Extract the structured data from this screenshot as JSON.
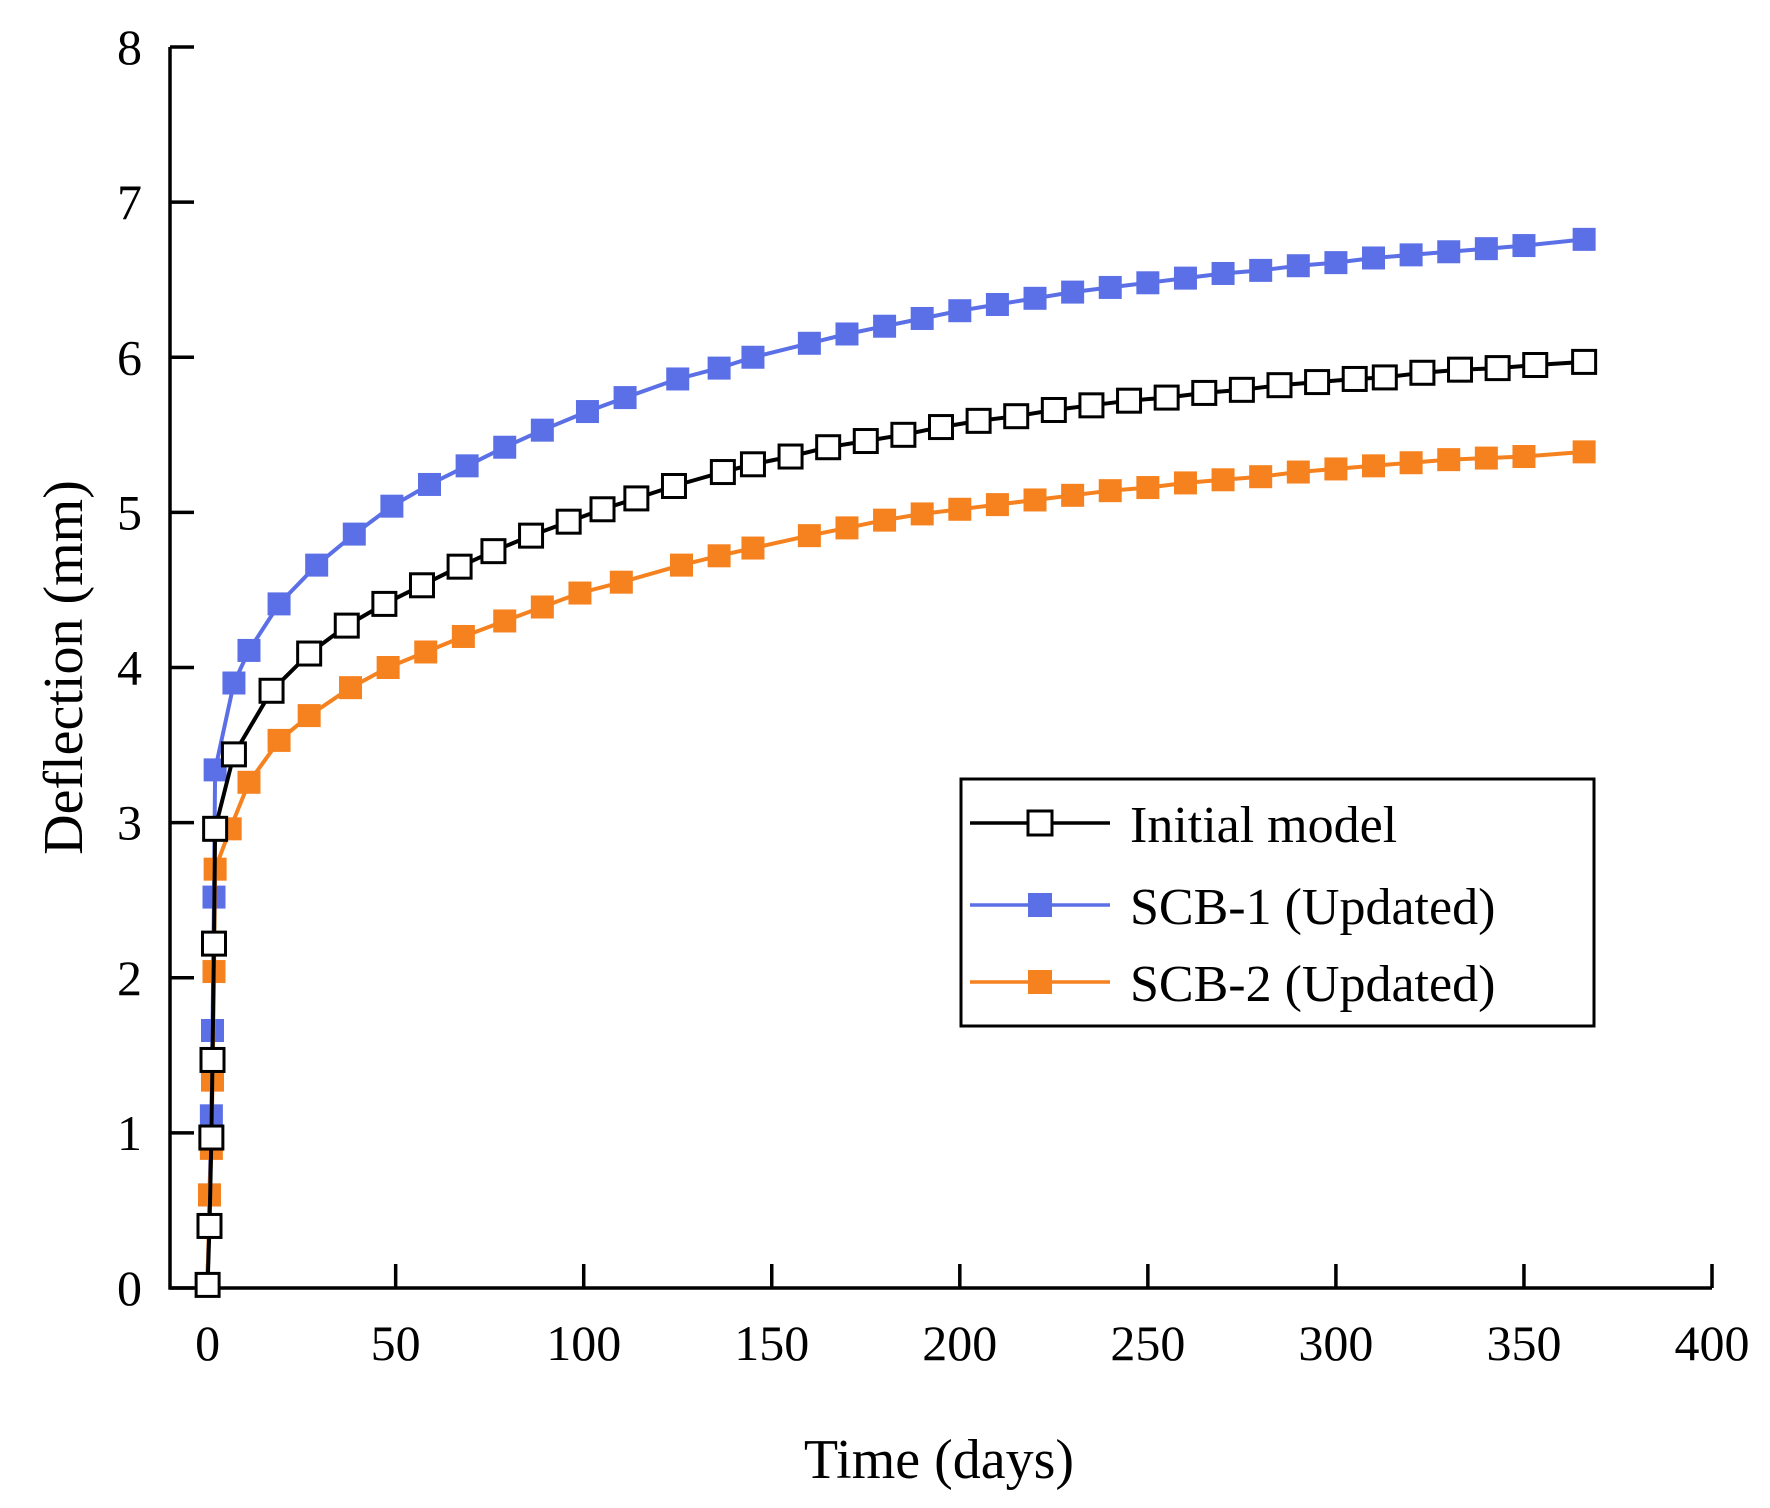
{
  "chart_data": {
    "type": "line",
    "title": "",
    "xlabel": "Time (days)",
    "ylabel": "Deflection (mm)",
    "xlim": [
      -10,
      400
    ],
    "ylim": [
      0,
      8
    ],
    "xticks": [
      "0",
      "50",
      "100",
      "150",
      "200",
      "250",
      "300",
      "350",
      "400"
    ],
    "yticks": [
      "0",
      "1",
      "2",
      "3",
      "4",
      "5",
      "6",
      "7",
      "8"
    ],
    "legend_position": "center-right",
    "series": [
      {
        "name": "Initial model",
        "color": "#000000",
        "marker": "square-open",
        "x": [
          0,
          0.5,
          1,
          1.3,
          1.7,
          2,
          7,
          17,
          27,
          37,
          47,
          57,
          67,
          76,
          86,
          96,
          105,
          114,
          124,
          137,
          145,
          155,
          165,
          175,
          185,
          195,
          205,
          215,
          225,
          235,
          245,
          255,
          265,
          275,
          285,
          295,
          305,
          313,
          323,
          333,
          343,
          353,
          366
        ],
        "y": [
          0.02,
          0.4,
          0.97,
          1.47,
          2.22,
          2.96,
          3.44,
          3.85,
          4.09,
          4.27,
          4.41,
          4.53,
          4.65,
          4.75,
          4.85,
          4.94,
          5.02,
          5.09,
          5.17,
          5.26,
          5.31,
          5.36,
          5.42,
          5.46,
          5.5,
          5.55,
          5.59,
          5.62,
          5.66,
          5.69,
          5.72,
          5.74,
          5.77,
          5.79,
          5.82,
          5.84,
          5.86,
          5.87,
          5.9,
          5.92,
          5.93,
          5.95,
          5.97
        ]
      },
      {
        "name": "SCB-1 (Updated)",
        "color": "#5B70E6",
        "marker": "square-filled",
        "x": [
          0,
          0.5,
          1,
          1.3,
          1.7,
          2,
          7,
          11,
          19,
          29,
          39,
          49,
          59,
          69,
          79,
          89,
          101,
          111,
          125,
          136,
          145,
          160,
          170,
          180,
          190,
          200,
          210,
          220,
          230,
          240,
          250,
          260,
          270,
          280,
          290,
          300,
          310,
          320,
          330,
          340,
          350,
          366
        ],
        "y": [
          0.02,
          0.6,
          1.11,
          1.66,
          2.52,
          3.34,
          3.9,
          4.11,
          4.41,
          4.66,
          4.86,
          5.04,
          5.18,
          5.3,
          5.42,
          5.53,
          5.65,
          5.74,
          5.86,
          5.93,
          6.0,
          6.09,
          6.15,
          6.2,
          6.25,
          6.3,
          6.34,
          6.38,
          6.42,
          6.45,
          6.48,
          6.51,
          6.54,
          6.56,
          6.59,
          6.61,
          6.64,
          6.66,
          6.68,
          6.7,
          6.72,
          6.76
        ]
      },
      {
        "name": "SCB-2 (Updated)",
        "color": "#F5821E",
        "marker": "square-filled",
        "x": [
          0,
          0.5,
          1,
          1.3,
          1.7,
          2,
          6,
          11,
          19,
          27,
          38,
          48,
          58,
          68,
          79,
          89,
          99,
          110,
          126,
          136,
          145,
          160,
          170,
          180,
          190,
          200,
          210,
          220,
          230,
          240,
          250,
          260,
          270,
          280,
          290,
          300,
          310,
          320,
          330,
          340,
          350,
          366
        ],
        "y": [
          0.02,
          0.6,
          0.9,
          1.34,
          2.04,
          2.7,
          2.96,
          3.26,
          3.53,
          3.69,
          3.87,
          4.0,
          4.1,
          4.2,
          4.3,
          4.39,
          4.48,
          4.55,
          4.66,
          4.72,
          4.77,
          4.85,
          4.9,
          4.95,
          4.99,
          5.02,
          5.05,
          5.08,
          5.11,
          5.14,
          5.16,
          5.19,
          5.21,
          5.23,
          5.26,
          5.28,
          5.3,
          5.32,
          5.34,
          5.35,
          5.36,
          5.39
        ]
      }
    ]
  }
}
